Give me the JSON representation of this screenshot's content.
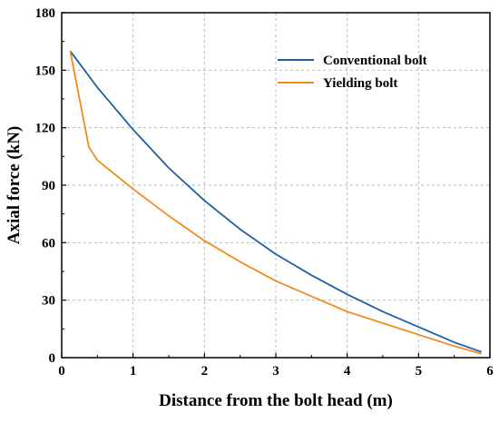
{
  "chart_data": {
    "type": "line",
    "xlabel": "Distance from the bolt head (m)",
    "ylabel": "Axial force (kN)",
    "xlim": [
      0,
      6
    ],
    "ylim": [
      0,
      180
    ],
    "xticks": [
      0,
      1,
      2,
      3,
      4,
      5,
      6
    ],
    "yticks": [
      0,
      30,
      60,
      90,
      120,
      150,
      180
    ],
    "grid": true,
    "legend_position": "top-right",
    "series": [
      {
        "name": "Conventional bolt",
        "color": "#1f5fa6",
        "x": [
          0.12,
          0.5,
          1.0,
          1.5,
          2.0,
          2.5,
          3.0,
          3.5,
          4.0,
          4.5,
          5.0,
          5.5,
          5.88
        ],
        "y": [
          160,
          141,
          119,
          99,
          82,
          67,
          54,
          43,
          33,
          24,
          16,
          8,
          3
        ]
      },
      {
        "name": "Yielding bolt",
        "color": "#f08c1e",
        "x": [
          0.12,
          0.38,
          0.5,
          1.0,
          1.5,
          2.0,
          2.5,
          3.0,
          3.5,
          4.0,
          4.5,
          5.0,
          5.5,
          5.88
        ],
        "y": [
          160,
          110,
          103,
          88,
          74,
          61,
          50,
          40,
          32,
          24,
          18,
          12,
          6,
          2
        ]
      }
    ]
  }
}
